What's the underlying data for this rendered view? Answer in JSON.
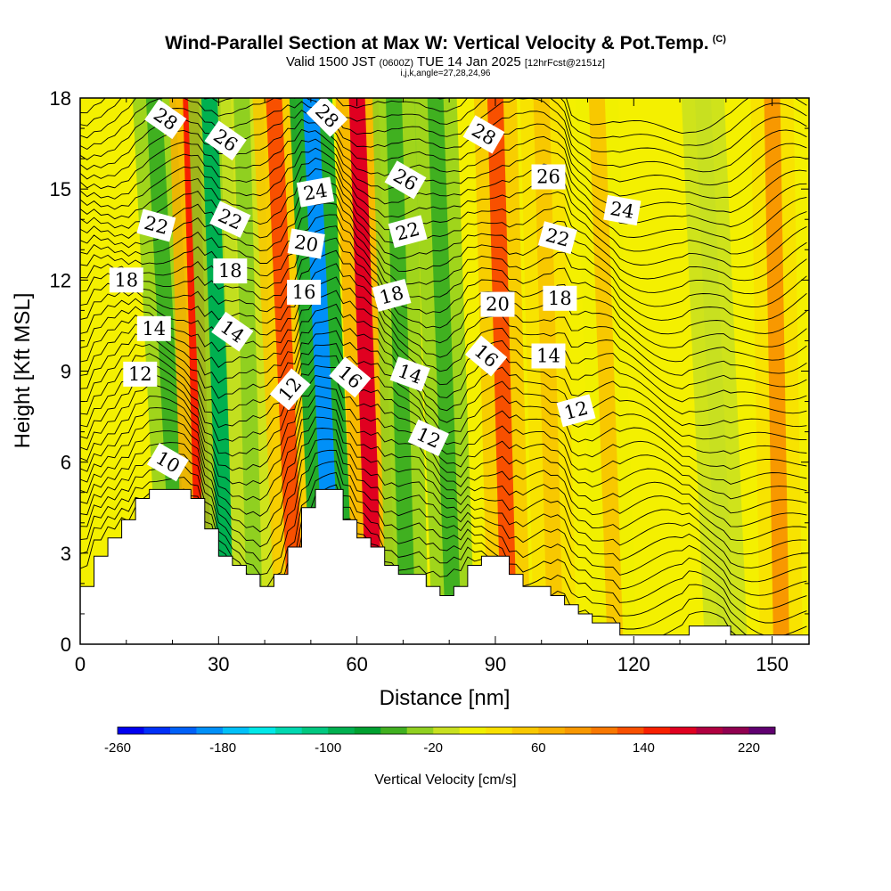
{
  "header": {
    "title": "Wind-Parallel Section at Max W: Vertical Velocity & Pot.Temp.",
    "copyright": "(C)",
    "valid_prefix": "Valid 1500 JST",
    "valid_utc": "(0600Z)",
    "valid_date": "TUE 14 Jan 2025",
    "forecast_info": "[12hrFcst@2151z]",
    "section_info": "i,j,k,angle=27,28,24,96"
  },
  "chart_data": {
    "type": "heatmap",
    "xlabel": "Distance [nm]",
    "ylabel": "Height [Kft MSL]",
    "xlim": [
      0,
      158
    ],
    "ylim": [
      0,
      18
    ],
    "xticks": [
      0,
      30,
      60,
      90,
      120,
      150
    ],
    "yticks": [
      0,
      3,
      6,
      9,
      12,
      15,
      18
    ],
    "grid": false,
    "colorbar": {
      "label": "Vertical Velocity [cm/s]",
      "min": -260,
      "max": 240,
      "step": 20,
      "tick_labels": [
        -260,
        -180,
        -100,
        -20,
        60,
        140,
        220
      ],
      "colors": [
        "#0000f0",
        "#0030f8",
        "#0060f8",
        "#0090f8",
        "#00c0f8",
        "#00e8e8",
        "#00d8b0",
        "#00c880",
        "#00b050",
        "#00a030",
        "#40b020",
        "#90d020",
        "#c8e020",
        "#f0f000",
        "#f8e000",
        "#f8c800",
        "#f8b000",
        "#f89800",
        "#f87800",
        "#f85000",
        "#f82000",
        "#e00020",
        "#b00040",
        "#900050",
        "#600070"
      ]
    },
    "terrain_height_kft": {
      "x": [
        0,
        3,
        6,
        9,
        12,
        15,
        18,
        21,
        24,
        27,
        30,
        33,
        36,
        39,
        42,
        45,
        48,
        51,
        54,
        57,
        60,
        63,
        66,
        69,
        72,
        75,
        78,
        81,
        84,
        87,
        90,
        93,
        96,
        99,
        102,
        105,
        108,
        111,
        114,
        117,
        120,
        123,
        126,
        129,
        132,
        135,
        138,
        141,
        144,
        147,
        150,
        153,
        156,
        158
      ],
      "h": [
        1.9,
        2.9,
        3.5,
        4.1,
        4.8,
        5.1,
        5.1,
        5.1,
        4.8,
        3.8,
        2.9,
        2.6,
        2.3,
        1.9,
        2.3,
        3.2,
        4.5,
        5.1,
        5.1,
        4.1,
        3.5,
        3.2,
        2.6,
        2.3,
        2.3,
        1.9,
        1.6,
        1.9,
        2.6,
        2.9,
        2.9,
        2.3,
        1.9,
        1.9,
        1.6,
        1.3,
        1.0,
        0.7,
        0.7,
        0.3,
        0.3,
        0.3,
        0.3,
        0.3,
        0.6,
        0.6,
        0.6,
        0.3,
        0.3,
        0.3,
        0.3,
        0.3,
        0.3,
        0.3
      ]
    },
    "vertical_velocity_bands": [
      {
        "x_bottom": 22,
        "x_top": 16,
        "w": -60
      },
      {
        "x_bottom": 27,
        "x_top": 24,
        "w": 150
      },
      {
        "x_bottom": 32,
        "x_top": 28,
        "w": -100
      },
      {
        "x_bottom": 38,
        "x_top": 35,
        "w": -40
      },
      {
        "x_bottom": 47,
        "x_top": 42,
        "w": 130
      },
      {
        "x_bottom": 55,
        "x_top": 50,
        "w": -200
      },
      {
        "x_bottom": 64,
        "x_top": 60,
        "w": 160
      },
      {
        "x_bottom": 71,
        "x_top": 68,
        "w": -60
      },
      {
        "x_bottom": 81,
        "x_top": 77,
        "w": -60
      },
      {
        "x_bottom": 93,
        "x_top": 90,
        "w": 120
      },
      {
        "x_bottom": 103,
        "x_top": 100,
        "w": 50
      },
      {
        "x_bottom": 116,
        "x_top": 112,
        "w": 40
      },
      {
        "x_bottom": 140,
        "x_top": 135,
        "w": -20
      },
      {
        "x_bottom": 152,
        "x_top": 150,
        "w": 80
      }
    ],
    "isentrope_labels": [
      {
        "text": "28",
        "x": 18.5,
        "y": 17.3,
        "angle": 35
      },
      {
        "text": "26",
        "x": 31.5,
        "y": 16.6,
        "angle": 35
      },
      {
        "text": "28",
        "x": 53.5,
        "y": 17.4,
        "angle": 45
      },
      {
        "text": "28",
        "x": 87.5,
        "y": 16.8,
        "angle": 30
      },
      {
        "text": "26",
        "x": 70.5,
        "y": 15.3,
        "angle": 30
      },
      {
        "text": "26",
        "x": 101.5,
        "y": 15.4,
        "angle": 0
      },
      {
        "text": "24",
        "x": 51.0,
        "y": 14.9,
        "angle": -10
      },
      {
        "text": "24",
        "x": 117.5,
        "y": 14.3,
        "angle": 10
      },
      {
        "text": "22",
        "x": 16.5,
        "y": 13.8,
        "angle": 15
      },
      {
        "text": "22",
        "x": 32.5,
        "y": 14.0,
        "angle": 25
      },
      {
        "text": "22",
        "x": 71.0,
        "y": 13.6,
        "angle": -15
      },
      {
        "text": "22",
        "x": 103.5,
        "y": 13.4,
        "angle": 15
      },
      {
        "text": "20",
        "x": 49.0,
        "y": 13.2,
        "angle": 10
      },
      {
        "text": "20",
        "x": 90.5,
        "y": 11.2,
        "angle": 0
      },
      {
        "text": "18",
        "x": 10.0,
        "y": 12.0,
        "angle": 0
      },
      {
        "text": "18",
        "x": 32.5,
        "y": 12.3,
        "angle": 0
      },
      {
        "text": "18",
        "x": 67.5,
        "y": 11.5,
        "angle": -15
      },
      {
        "text": "18",
        "x": 104.0,
        "y": 11.4,
        "angle": 0
      },
      {
        "text": "16",
        "x": 48.5,
        "y": 11.6,
        "angle": 0
      },
      {
        "text": "16",
        "x": 58.5,
        "y": 8.8,
        "angle": 40
      },
      {
        "text": "16",
        "x": 88.0,
        "y": 9.5,
        "angle": 40
      },
      {
        "text": "14",
        "x": 16.0,
        "y": 10.4,
        "angle": 0
      },
      {
        "text": "14",
        "x": 33.0,
        "y": 10.3,
        "angle": 35
      },
      {
        "text": "14",
        "x": 71.5,
        "y": 8.9,
        "angle": 20
      },
      {
        "text": "14",
        "x": 101.5,
        "y": 9.5,
        "angle": 0
      },
      {
        "text": "12",
        "x": 13.0,
        "y": 8.9,
        "angle": 0
      },
      {
        "text": "12",
        "x": 45.5,
        "y": 8.4,
        "angle": -50
      },
      {
        "text": "12",
        "x": 75.5,
        "y": 6.8,
        "angle": 25
      },
      {
        "text": "12",
        "x": 107.5,
        "y": 7.7,
        "angle": -15
      },
      {
        "text": "10",
        "x": 19.0,
        "y": 6.0,
        "angle": 30
      }
    ]
  }
}
